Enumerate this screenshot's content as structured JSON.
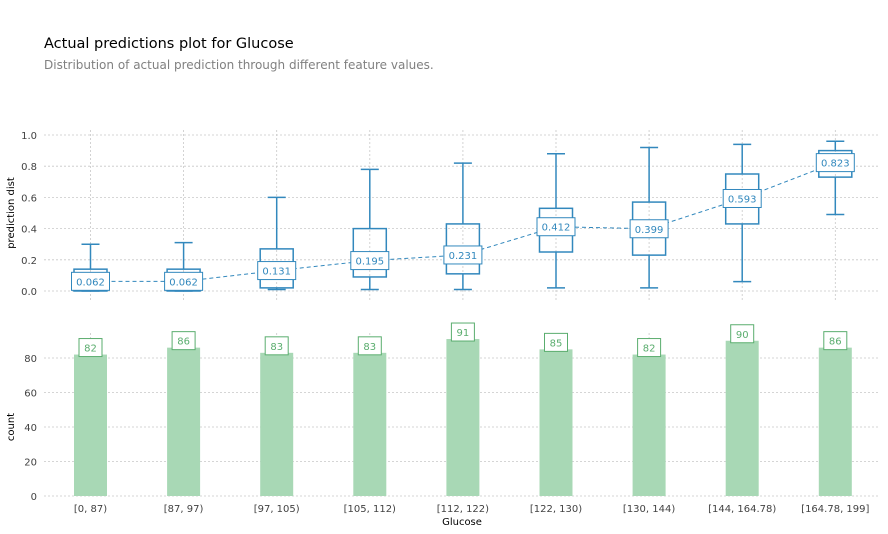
{
  "title": "Actual predictions plot for Glucose",
  "subtitle": "Distribution of actual prediction through different feature values.",
  "colors": {
    "box": "#3288bd",
    "bar": "#a8d8b5",
    "bar_label": "#5aad6e",
    "grid": "#c8c8c8",
    "axis_text": "#424242"
  },
  "chart_data": [
    {
      "type": "box",
      "ylabel": "prediction dist",
      "ylim": [
        0,
        1.0
      ],
      "yticks": [
        "0.0",
        "0.2",
        "0.4",
        "0.6",
        "0.8",
        "1.0"
      ],
      "grid": true,
      "categories": [
        "[0, 87)",
        "[87, 97)",
        "[97, 105)",
        "[105, 112)",
        "[112, 122)",
        "[122, 130)",
        "[130, 144)",
        "[144, 164.78)",
        "[164.78, 199]"
      ],
      "boxes": [
        {
          "whisker_low": 0.0,
          "q1": 0.0,
          "q3": 0.14,
          "whisker_high": 0.3,
          "mean": 0.062,
          "label": "0.062"
        },
        {
          "whisker_low": 0.0,
          "q1": 0.0,
          "q3": 0.14,
          "whisker_high": 0.31,
          "mean": 0.062,
          "label": "0.062"
        },
        {
          "whisker_low": 0.01,
          "q1": 0.02,
          "q3": 0.27,
          "whisker_high": 0.6,
          "mean": 0.131,
          "label": "0.131"
        },
        {
          "whisker_low": 0.01,
          "q1": 0.09,
          "q3": 0.4,
          "whisker_high": 0.78,
          "mean": 0.195,
          "label": "0.195"
        },
        {
          "whisker_low": 0.01,
          "q1": 0.11,
          "q3": 0.43,
          "whisker_high": 0.82,
          "mean": 0.231,
          "label": "0.231"
        },
        {
          "whisker_low": 0.02,
          "q1": 0.25,
          "q3": 0.53,
          "whisker_high": 0.88,
          "mean": 0.412,
          "label": "0.412"
        },
        {
          "whisker_low": 0.02,
          "q1": 0.23,
          "q3": 0.57,
          "whisker_high": 0.92,
          "mean": 0.399,
          "label": "0.399"
        },
        {
          "whisker_low": 0.06,
          "q1": 0.43,
          "q3": 0.75,
          "whisker_high": 0.94,
          "mean": 0.593,
          "label": "0.593"
        },
        {
          "whisker_low": 0.49,
          "q1": 0.73,
          "q3": 0.9,
          "whisker_high": 0.96,
          "mean": 0.823,
          "label": "0.823"
        }
      ]
    },
    {
      "type": "bar",
      "ylabel": "count",
      "xlabel": "Glucose",
      "ylim": [
        0,
        95
      ],
      "yticks": [
        "0",
        "20",
        "40",
        "60",
        "80"
      ],
      "grid": true,
      "categories": [
        "[0, 87)",
        "[87, 97)",
        "[97, 105)",
        "[105, 112)",
        "[112, 122)",
        "[122, 130)",
        "[130, 144)",
        "[144, 164.78)",
        "[164.78, 199]"
      ],
      "values": [
        82,
        86,
        83,
        83,
        91,
        85,
        82,
        90,
        86
      ]
    }
  ]
}
